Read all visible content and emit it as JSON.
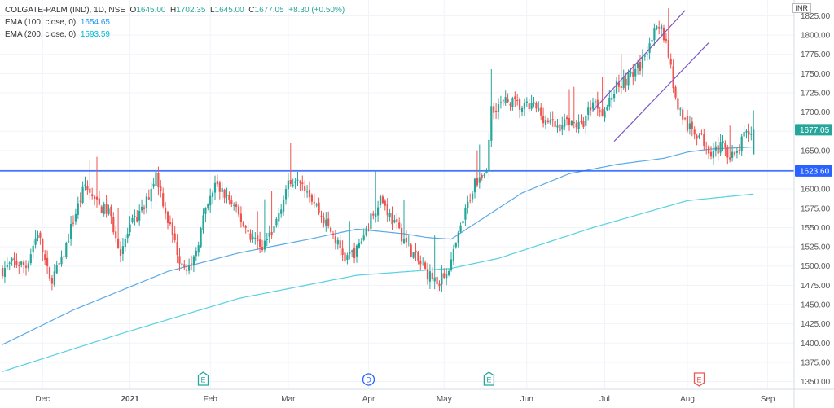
{
  "header": {
    "symbol_line": "COLGATE-PALM (IND), 1D, NSE",
    "o_label": "O",
    "o_value": "1645.00",
    "h_label": "H",
    "h_value": "1702.35",
    "l_label": "L",
    "l_value": "1645.00",
    "c_label": "C",
    "c_value": "1677.05",
    "change": "+8.30 (+0.50%)",
    "ema100_label": "EMA (100, close, 0)",
    "ema100_value": "1654.65",
    "ema200_label": "EMA (200, close, 0)",
    "ema200_value": "1593.59",
    "currency": "INR"
  },
  "colors": {
    "up": "#26a69a",
    "down": "#ef5350",
    "ema100": "#5aa9e6",
    "ema200": "#56d1e2",
    "hline": "#2962ff",
    "channel": "#7e57c2",
    "grid": "#f0f3fa",
    "earnings_past": "#26a69a",
    "earnings_future": "#ef5350",
    "dividend": "#2962ff"
  },
  "chart_data": {
    "type": "candlestick",
    "y_axis": {
      "min": 1340,
      "max": 1835,
      "ticks": [
        1350,
        1375,
        1400,
        1425,
        1450,
        1475,
        1500,
        1525,
        1550,
        1575,
        1600,
        1625,
        1650,
        1675,
        1700,
        1725,
        1750,
        1775,
        1800,
        1825
      ]
    },
    "x_labels": [
      "Dec",
      "2021",
      "Feb",
      "Mar",
      "Apr",
      "May",
      "Jun",
      "Jul",
      "Aug",
      "Sep"
    ],
    "horizontal_line": 1623.6,
    "horizontal_line_label": "1623.60",
    "last_price_label": "1677.05",
    "close_anchors": [
      [
        0,
        1495
      ],
      [
        5,
        1505
      ],
      [
        10,
        1500
      ],
      [
        15,
        1545
      ],
      [
        20,
        1480
      ],
      [
        25,
        1505
      ],
      [
        30,
        1560
      ],
      [
        35,
        1605
      ],
      [
        40,
        1580
      ],
      [
        45,
        1570
      ],
      [
        50,
        1520
      ],
      [
        55,
        1555
      ],
      [
        60,
        1575
      ],
      [
        65,
        1620
      ],
      [
        70,
        1560
      ],
      [
        75,
        1510
      ],
      [
        80,
        1495
      ],
      [
        85,
        1560
      ],
      [
        90,
        1605
      ],
      [
        95,
        1590
      ],
      [
        100,
        1565
      ],
      [
        105,
        1540
      ],
      [
        110,
        1525
      ],
      [
        115,
        1550
      ],
      [
        120,
        1600
      ],
      [
        125,
        1620
      ],
      [
        130,
        1595
      ],
      [
        135,
        1565
      ],
      [
        140,
        1540
      ],
      [
        145,
        1510
      ],
      [
        150,
        1520
      ],
      [
        155,
        1555
      ],
      [
        160,
        1590
      ],
      [
        165,
        1560
      ],
      [
        170,
        1535
      ],
      [
        175,
        1510
      ],
      [
        180,
        1490
      ],
      [
        185,
        1478
      ],
      [
        190,
        1505
      ],
      [
        195,
        1560
      ],
      [
        200,
        1610
      ],
      [
        205,
        1625
      ],
      [
        207,
        1705
      ],
      [
        215,
        1715
      ],
      [
        220,
        1705
      ],
      [
        225,
        1708
      ],
      [
        230,
        1690
      ],
      [
        235,
        1680
      ],
      [
        240,
        1690
      ],
      [
        245,
        1680
      ],
      [
        250,
        1715
      ],
      [
        255,
        1700
      ],
      [
        260,
        1735
      ],
      [
        265,
        1745
      ],
      [
        270,
        1760
      ],
      [
        275,
        1800
      ],
      [
        279,
        1808
      ],
      [
        281,
        1790
      ],
      [
        283,
        1760
      ],
      [
        285,
        1715
      ],
      [
        290,
        1680
      ],
      [
        295,
        1670
      ],
      [
        300,
        1650
      ],
      [
        305,
        1655
      ],
      [
        310,
        1640
      ],
      [
        314,
        1668
      ],
      [
        318,
        1677.05
      ]
    ],
    "ema100_anchors": [
      [
        0,
        1398
      ],
      [
        30,
        1443
      ],
      [
        70,
        1493
      ],
      [
        100,
        1517
      ],
      [
        130,
        1535
      ],
      [
        150,
        1548
      ],
      [
        170,
        1542
      ],
      [
        180,
        1537
      ],
      [
        190,
        1535
      ],
      [
        200,
        1555
      ],
      [
        220,
        1595
      ],
      [
        240,
        1620
      ],
      [
        260,
        1632
      ],
      [
        280,
        1640
      ],
      [
        290,
        1648
      ],
      [
        300,
        1652
      ],
      [
        318,
        1654.65
      ]
    ],
    "ema200_anchors": [
      [
        0,
        1363
      ],
      [
        50,
        1412
      ],
      [
        100,
        1458
      ],
      [
        150,
        1488
      ],
      [
        190,
        1497
      ],
      [
        210,
        1510
      ],
      [
        250,
        1550
      ],
      [
        290,
        1585
      ],
      [
        318,
        1593.59
      ]
    ],
    "channel_upper": [
      [
        250,
        1702
      ],
      [
        289,
        1832
      ]
    ],
    "channel_lower": [
      [
        259,
        1662
      ],
      [
        299,
        1790
      ]
    ],
    "events": [
      {
        "day": 85,
        "letter": "E",
        "kind": "earnings_past"
      },
      {
        "day": 155,
        "letter": "D",
        "kind": "dividend"
      },
      {
        "day": 206,
        "letter": "E",
        "kind": "earnings_past"
      },
      {
        "day": 295,
        "letter": "E",
        "kind": "earnings_future"
      }
    ]
  }
}
